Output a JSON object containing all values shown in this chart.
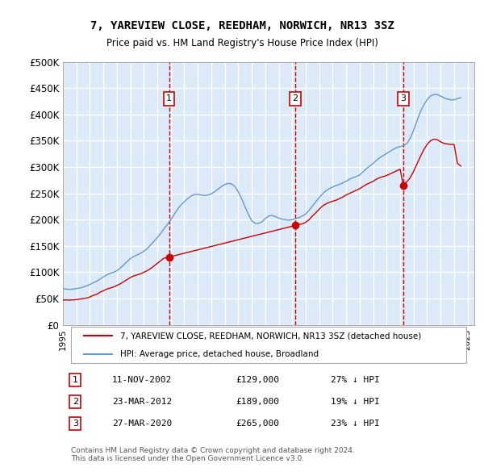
{
  "title": "7, YAREVIEW CLOSE, REEDHAM, NORWICH, NR13 3SZ",
  "subtitle": "Price paid vs. HM Land Registry's House Price Index (HPI)",
  "ylabel": "",
  "xlabel": "",
  "ylim": [
    0,
    500000
  ],
  "yticks": [
    0,
    50000,
    100000,
    150000,
    200000,
    250000,
    300000,
    350000,
    400000,
    450000,
    500000
  ],
  "ytick_labels": [
    "£0",
    "£50K",
    "£100K",
    "£150K",
    "£200K",
    "£250K",
    "£300K",
    "£350K",
    "£400K",
    "£450K",
    "£500K"
  ],
  "xlim_start": 1995.0,
  "xlim_end": 2025.5,
  "background_color": "#dce9f7",
  "plot_bg_color": "#dce9f7",
  "grid_color": "#ffffff",
  "red_line_color": "#cc0000",
  "blue_line_color": "#6699cc",
  "sale_marker_color": "#cc0000",
  "dashed_line_color": "#cc0000",
  "transactions": [
    {
      "num": 1,
      "date": "11-NOV-2002",
      "price": 129000,
      "year": 2002.87,
      "hpi_pct": "27% ↓ HPI"
    },
    {
      "num": 2,
      "date": "23-MAR-2012",
      "price": 189000,
      "year": 2012.22,
      "hpi_pct": "19% ↓ HPI"
    },
    {
      "num": 3,
      "date": "27-MAR-2020",
      "price": 265000,
      "year": 2020.23,
      "hpi_pct": "23% ↓ HPI"
    }
  ],
  "legend_line1": "7, YAREVIEW CLOSE, REEDHAM, NORWICH, NR13 3SZ (detached house)",
  "legend_line2": "HPI: Average price, detached house, Broadland",
  "footer": "Contains HM Land Registry data © Crown copyright and database right 2024.\nThis data is licensed under the Open Government Licence v3.0.",
  "hpi_data_x": [
    1995.0,
    1995.25,
    1995.5,
    1995.75,
    1996.0,
    1996.25,
    1996.5,
    1996.75,
    1997.0,
    1997.25,
    1997.5,
    1997.75,
    1998.0,
    1998.25,
    1998.5,
    1998.75,
    1999.0,
    1999.25,
    1999.5,
    1999.75,
    2000.0,
    2000.25,
    2000.5,
    2000.75,
    2001.0,
    2001.25,
    2001.5,
    2001.75,
    2002.0,
    2002.25,
    2002.5,
    2002.75,
    2003.0,
    2003.25,
    2003.5,
    2003.75,
    2004.0,
    2004.25,
    2004.5,
    2004.75,
    2005.0,
    2005.25,
    2005.5,
    2005.75,
    2006.0,
    2006.25,
    2006.5,
    2006.75,
    2007.0,
    2007.25,
    2007.5,
    2007.75,
    2008.0,
    2008.25,
    2008.5,
    2008.75,
    2009.0,
    2009.25,
    2009.5,
    2009.75,
    2010.0,
    2010.25,
    2010.5,
    2010.75,
    2011.0,
    2011.25,
    2011.5,
    2011.75,
    2012.0,
    2012.25,
    2012.5,
    2012.75,
    2013.0,
    2013.25,
    2013.5,
    2013.75,
    2014.0,
    2014.25,
    2014.5,
    2014.75,
    2015.0,
    2015.25,
    2015.5,
    2015.75,
    2016.0,
    2016.25,
    2016.5,
    2016.75,
    2017.0,
    2017.25,
    2017.5,
    2017.75,
    2018.0,
    2018.25,
    2018.5,
    2018.75,
    2019.0,
    2019.25,
    2019.5,
    2019.75,
    2020.0,
    2020.25,
    2020.5,
    2020.75,
    2021.0,
    2021.25,
    2021.5,
    2021.75,
    2022.0,
    2022.25,
    2022.5,
    2022.75,
    2023.0,
    2023.25,
    2023.5,
    2023.75,
    2024.0,
    2024.25,
    2024.5
  ],
  "hpi_data_y": [
    69000,
    68000,
    67500,
    68000,
    69000,
    70000,
    72000,
    74000,
    77000,
    80000,
    83000,
    87000,
    91000,
    95000,
    98000,
    100000,
    103000,
    108000,
    114000,
    120000,
    126000,
    130000,
    133000,
    136000,
    140000,
    145000,
    152000,
    159000,
    166000,
    174000,
    183000,
    191000,
    200000,
    210000,
    220000,
    228000,
    234000,
    240000,
    245000,
    248000,
    248000,
    247000,
    246000,
    247000,
    249000,
    253000,
    258000,
    263000,
    267000,
    269000,
    268000,
    263000,
    253000,
    240000,
    225000,
    210000,
    198000,
    193000,
    193000,
    196000,
    202000,
    207000,
    208000,
    206000,
    203000,
    201000,
    200000,
    199000,
    200000,
    202000,
    204000,
    207000,
    211000,
    218000,
    226000,
    234000,
    242000,
    249000,
    255000,
    259000,
    262000,
    265000,
    267000,
    270000,
    273000,
    277000,
    280000,
    282000,
    285000,
    291000,
    297000,
    302000,
    307000,
    313000,
    318000,
    322000,
    326000,
    330000,
    334000,
    337000,
    339000,
    341000,
    345000,
    355000,
    370000,
    388000,
    405000,
    418000,
    428000,
    435000,
    438000,
    438000,
    435000,
    432000,
    429000,
    428000,
    428000,
    430000,
    432000
  ],
  "red_data_x": [
    1995.0,
    1995.25,
    1995.5,
    1995.75,
    1996.0,
    1996.25,
    1996.5,
    1996.75,
    1997.0,
    1997.25,
    1997.5,
    1997.75,
    1998.0,
    1998.25,
    1998.5,
    1998.75,
    1999.0,
    1999.25,
    1999.5,
    1999.75,
    2000.0,
    2000.25,
    2000.5,
    2000.75,
    2001.0,
    2001.25,
    2001.5,
    2001.75,
    2002.0,
    2002.25,
    2002.5,
    2002.75,
    2002.87,
    2012.22,
    2012.25,
    2012.5,
    2012.75,
    2013.0,
    2013.25,
    2013.5,
    2013.75,
    2014.0,
    2014.25,
    2014.5,
    2014.75,
    2015.0,
    2015.25,
    2015.5,
    2015.75,
    2016.0,
    2016.25,
    2016.5,
    2016.75,
    2017.0,
    2017.25,
    2017.5,
    2017.75,
    2018.0,
    2018.25,
    2018.5,
    2018.75,
    2019.0,
    2019.25,
    2019.5,
    2019.75,
    2020.0,
    2020.23,
    2020.25,
    2020.5,
    2020.75,
    2021.0,
    2021.25,
    2021.5,
    2021.75,
    2022.0,
    2022.25,
    2022.5,
    2022.75,
    2023.0,
    2023.25,
    2023.5,
    2023.75,
    2024.0,
    2024.25,
    2024.5
  ],
  "red_data_y": [
    47000,
    47500,
    47000,
    47500,
    48000,
    49000,
    50000,
    51000,
    53000,
    56000,
    58000,
    62000,
    65000,
    68000,
    70000,
    72000,
    75000,
    78000,
    82000,
    86000,
    90000,
    93000,
    95000,
    97000,
    100000,
    103000,
    107000,
    112000,
    117000,
    122000,
    127000,
    128000,
    129000,
    189000,
    190000,
    191000,
    192000,
    195000,
    200000,
    207000,
    213000,
    220000,
    226000,
    230000,
    233000,
    235000,
    237000,
    240000,
    243000,
    247000,
    250000,
    253000,
    256000,
    259000,
    263000,
    267000,
    270000,
    273000,
    277000,
    280000,
    282000,
    284000,
    287000,
    290000,
    293000,
    296000,
    265000,
    267000,
    272000,
    280000,
    292000,
    306000,
    320000,
    333000,
    343000,
    350000,
    353000,
    352000,
    348000,
    345000,
    344000,
    343000,
    343000,
    307000,
    302000
  ]
}
